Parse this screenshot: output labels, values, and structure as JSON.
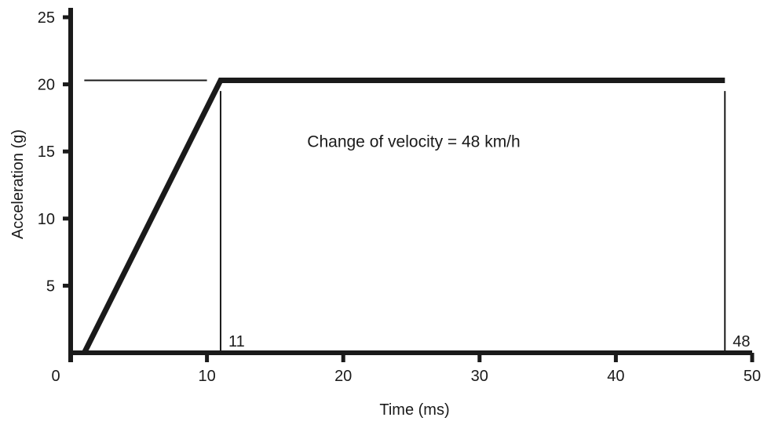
{
  "chart_data": {
    "type": "line",
    "xlabel": "Time (ms)",
    "ylabel": "Acceleration (g)",
    "xlim": [
      0,
      50
    ],
    "ylim": [
      0,
      25
    ],
    "xticks": [
      0,
      10,
      20,
      30,
      40,
      50
    ],
    "yticks": [
      5,
      10,
      15,
      20,
      25
    ],
    "x_tick_labels": [
      "0",
      "10",
      "20",
      "30",
      "40",
      "50"
    ],
    "y_tick_labels": [
      "5",
      "10",
      "15",
      "20",
      "25"
    ],
    "grid": false,
    "series": [
      {
        "x": [
          1,
          11,
          48
        ],
        "y": [
          0,
          20.3,
          20.3
        ]
      }
    ],
    "reference_lines": {
      "horizontal_stub": {
        "y": 20.3,
        "x_from": 1,
        "x_to": 10
      },
      "verticals": [
        {
          "x": 11,
          "y_to": 19.5,
          "label": "11"
        },
        {
          "x": 48,
          "y_to": 19.5,
          "label": "48"
        }
      ]
    },
    "annotation": "Change of velocity  = 48 km/h",
    "annotation_pos": {
      "x": 25,
      "y": 15.8
    }
  }
}
